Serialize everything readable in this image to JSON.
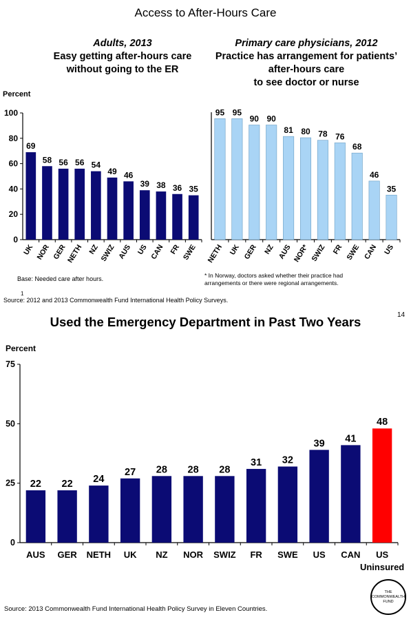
{
  "slide_title": "Access to After-Hours Care",
  "left_panel": {
    "line1": "Adults, 2013",
    "line2": "Easy getting after-hours care",
    "line3": "without going to the ER",
    "note": "Base: Needed care after hours."
  },
  "right_panel": {
    "line1": "Primary care physicians, 2012",
    "line2": "Practice has arrangement for patients’",
    "line3": "after-hours care",
    "line4": "to see doctor or nurse",
    "note": "* In Norway, doctors asked whether their practice had arrangements or there were regional arrangements."
  },
  "top_percent_label": "Percent",
  "slide_number": "1",
  "top_source": "Source: 2012 and 2013 Commonwealth Fund International Health Policy Surveys.",
  "page_number": "14",
  "bottom_title": "Used the Emergency Department in Past Two Years",
  "bottom_percent_label": "Percent",
  "bottom_source": "Source: 2013 Commonwealth Fund International Health Policy Survey in Eleven Countries.",
  "logo": {
    "line1": "THE",
    "line2": "COMMONWEALTH",
    "line3": "FUND"
  },
  "colors": {
    "navy": "#0b0b74",
    "light_blue": "#a9d4f5",
    "red": "#ff0000"
  },
  "chart_data": [
    {
      "type": "bar",
      "title": "Adults, 2013",
      "ylabel": "Percent",
      "categories": [
        "UK",
        "NOR",
        "GER",
        "NETH",
        "NZ",
        "SWIZ",
        "AUS",
        "US",
        "CAN",
        "FR",
        "SWE"
      ],
      "values": [
        69,
        58,
        56,
        56,
        54,
        49,
        46,
        39,
        38,
        36,
        35
      ],
      "ylim": [
        0,
        100
      ],
      "yticks": [
        0,
        20,
        40,
        60,
        80,
        100
      ],
      "bar_color": "#0b0b74"
    },
    {
      "type": "bar",
      "title": "Primary care physicians, 2012",
      "categories": [
        "NETH",
        "UK",
        "GER",
        "NZ",
        "AUS",
        "NOR*",
        "SWIZ",
        "FR",
        "SWE",
        "CAN",
        "US"
      ],
      "values": [
        95,
        95,
        90,
        90,
        81,
        80,
        78,
        76,
        68,
        46,
        35
      ],
      "ylim": [
        0,
        100
      ],
      "bar_color": "#a9d4f5"
    },
    {
      "type": "bar",
      "title": "Used the Emergency Department in Past Two Years",
      "ylabel": "Percent",
      "categories": [
        "AUS",
        "GER",
        "NETH",
        "UK",
        "NZ",
        "NOR",
        "SWIZ",
        "FR",
        "SWE",
        "US",
        "CAN",
        "US Uninsured"
      ],
      "values": [
        22,
        22,
        24,
        27,
        28,
        28,
        28,
        31,
        32,
        39,
        41,
        48
      ],
      "ylim": [
        0,
        75
      ],
      "yticks": [
        0,
        25,
        50,
        75
      ],
      "bar_colors": [
        "#0b0b74",
        "#0b0b74",
        "#0b0b74",
        "#0b0b74",
        "#0b0b74",
        "#0b0b74",
        "#0b0b74",
        "#0b0b74",
        "#0b0b74",
        "#0b0b74",
        "#0b0b74",
        "#ff0000"
      ]
    }
  ]
}
